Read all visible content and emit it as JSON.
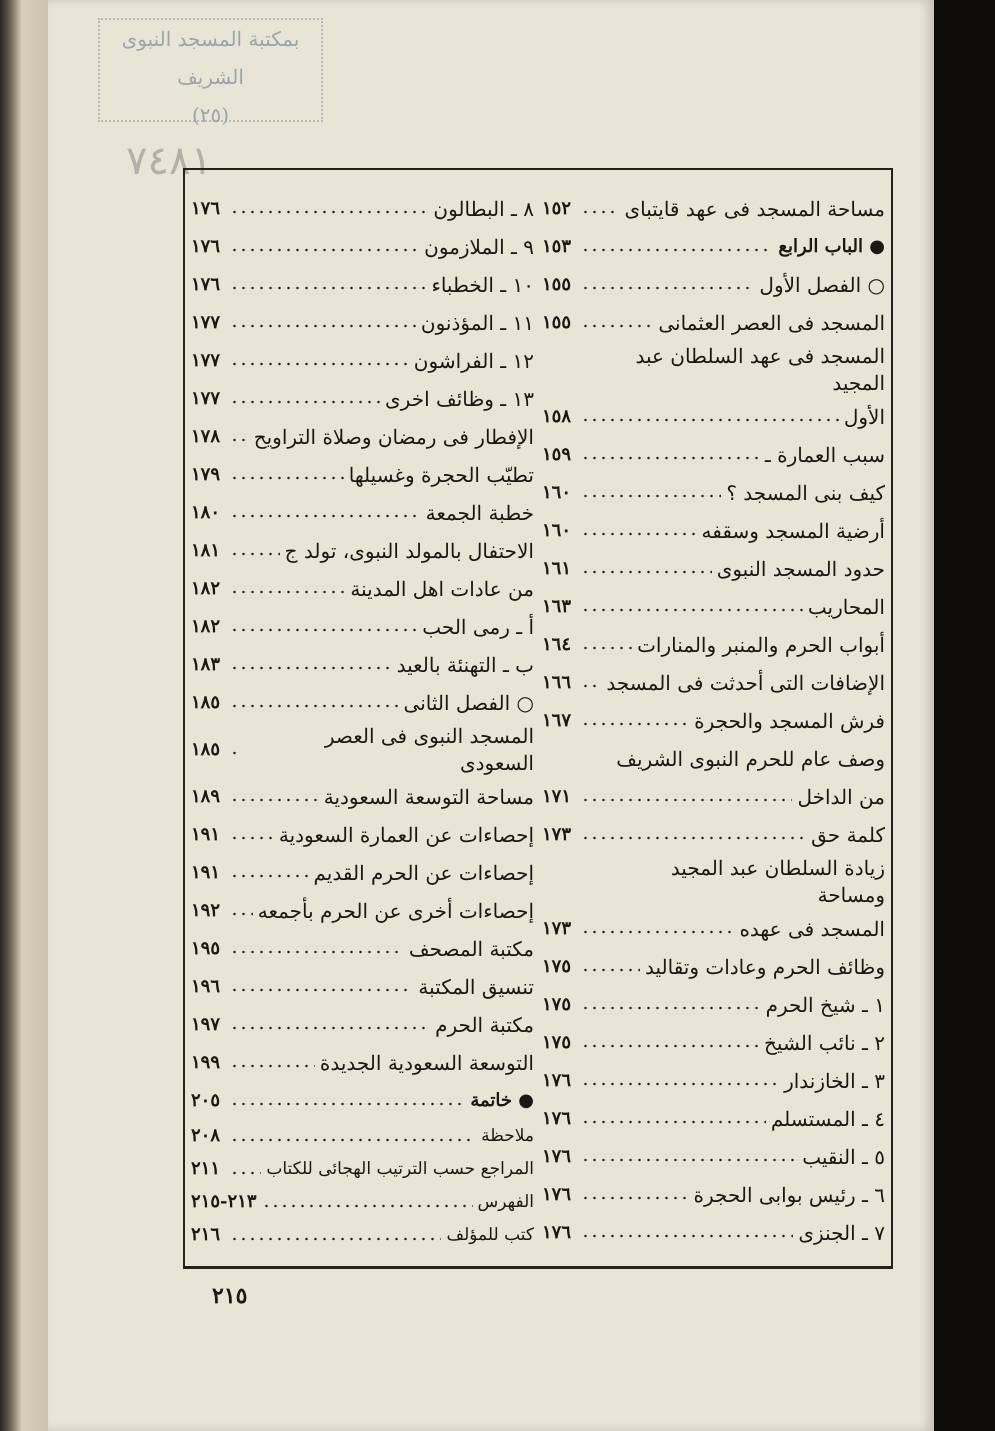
{
  "stamp": {
    "line1": "بمكتبة المسجد النبوى الشريف",
    "line2": "(٢٥)"
  },
  "handwritten_number": "٧٤٨١",
  "toc": {
    "right_column": [
      {
        "label": "مساحة المسجد فى عهد قايتباى",
        "page": "١٥٢"
      },
      {
        "label": "● الباب الرابع",
        "page": "١٥٣",
        "bold": true
      },
      {
        "label": "○ الفصل الأول",
        "page": "١٥٥"
      },
      {
        "label": "المسجد فى العصر العثمانى",
        "page": "١٥٥"
      },
      {
        "label": "المسجد فى عهد السلطان عبد المجيد",
        "page": ""
      },
      {
        "label": "الأول",
        "page": "١٥٨"
      },
      {
        "label": "سبب العمارة ـ",
        "page": "١٥٩"
      },
      {
        "label": "كيف بنى المسجد ؟",
        "page": "١٦٠"
      },
      {
        "label": "أرضية المسجد وسقفه",
        "page": "١٦٠"
      },
      {
        "label": "حدود المسجد النبوى",
        "page": "١٦١"
      },
      {
        "label": "المحاريب",
        "page": "١٦٣"
      },
      {
        "label": "أبواب الحرم والمنبر والمنارات",
        "page": "١٦٤"
      },
      {
        "label": "الإضافات التى أحدثت فى المسجد",
        "page": "١٦٦"
      },
      {
        "label": "فرش المسجد والحجرة",
        "page": "١٦٧"
      },
      {
        "label": "وصف عام للحرم النبوى الشريف",
        "page": ""
      },
      {
        "label": "من الداخل",
        "page": "١٧١"
      },
      {
        "label": "كلمة حق",
        "page": "١٧٣"
      },
      {
        "label": "زيادة السلطان عبد المجيد ومساحة",
        "page": ""
      },
      {
        "label": "المسجد فى عهده",
        "page": "١٧٣"
      },
      {
        "label": "وظائف الحرم وعادات وتقاليد",
        "page": "١٧٥"
      },
      {
        "label": "١ ـ شيخ الحرم",
        "page": "١٧٥"
      },
      {
        "label": "٢ ـ نائب الشيخ",
        "page": "١٧٥"
      },
      {
        "label": "٣ ـ الخازندار",
        "page": "١٧٦"
      },
      {
        "label": "٤ ـ المستسلم",
        "page": "١٧٦"
      },
      {
        "label": "٥ ـ النقيب",
        "page": "١٧٦"
      },
      {
        "label": "٦ ـ رئيس بوابى الحجرة",
        "page": "١٧٦"
      },
      {
        "label": "٧ ـ الجنزى",
        "page": "١٧٦"
      }
    ],
    "left_column": [
      {
        "label": "٨ ـ البطالون",
        "page": "١٧٦"
      },
      {
        "label": "٩ ـ الملازمون",
        "page": "١٧٦"
      },
      {
        "label": "١٠ ـ الخطباء",
        "page": "١٧٦"
      },
      {
        "label": "١١ ـ المؤذنون",
        "page": "١٧٧"
      },
      {
        "label": "١٢ ـ الفراشون",
        "page": "١٧٧"
      },
      {
        "label": "١٣ ـ وظائف اخرى",
        "page": "١٧٧"
      },
      {
        "label": "الإفطار فى رمضان وصلاة التراويح",
        "page": "١٧٨"
      },
      {
        "label": "تطيّب الحجرة وغسيلها",
        "page": "١٧٩"
      },
      {
        "label": "خطبة الجمعة",
        "page": "١٨٠"
      },
      {
        "label": "الاحتفال بالمولد النبوى، تولد ج",
        "page": "١٨١"
      },
      {
        "label": "من عادات اهل المدينة",
        "page": "١٨٢"
      },
      {
        "label": "أ ـ رمى الحب",
        "page": "١٨٢"
      },
      {
        "label": "ب ـ التهنئة بالعيد",
        "page": "١٨٣"
      },
      {
        "label": "○ الفصل الثانى",
        "page": "١٨٥"
      },
      {
        "label": "المسجد النبوى فى العصر السعودى",
        "page": "١٨٥"
      },
      {
        "label": "مساحة التوسعة السعودية",
        "page": "١٨٩"
      },
      {
        "label": "إحصاءات عن العمارة السعودية",
        "page": "١٩١"
      },
      {
        "label": "إحصاءات عن الحرم القديم",
        "page": "١٩١"
      },
      {
        "label": "إحصاءات أخرى عن الحرم بأجمعه",
        "page": "١٩٢"
      },
      {
        "label": "مكتبة المصحف",
        "page": "١٩٥"
      },
      {
        "label": "تنسيق المكتبة",
        "page": "١٩٦"
      },
      {
        "label": "مكتبة الحرم",
        "page": "١٩٧"
      },
      {
        "label": "التوسعة السعودية الجديدة",
        "page": "١٩٩"
      },
      {
        "label": "● خاتمة",
        "page": "٢٠٥",
        "bold": true
      },
      {
        "label": "ملاحظة",
        "page": "٢٠٨",
        "small": true
      },
      {
        "label": "المراجع حسب الترتيب الهجائى للكتاب",
        "page": "٢١١",
        "small": true
      },
      {
        "label": "الفهرس",
        "page": "٢١٣-٢١٥",
        "small": true
      },
      {
        "label": "كتب للمؤلف",
        "page": "٢١٦",
        "small": true
      }
    ]
  },
  "page_number": "٢١٥"
}
